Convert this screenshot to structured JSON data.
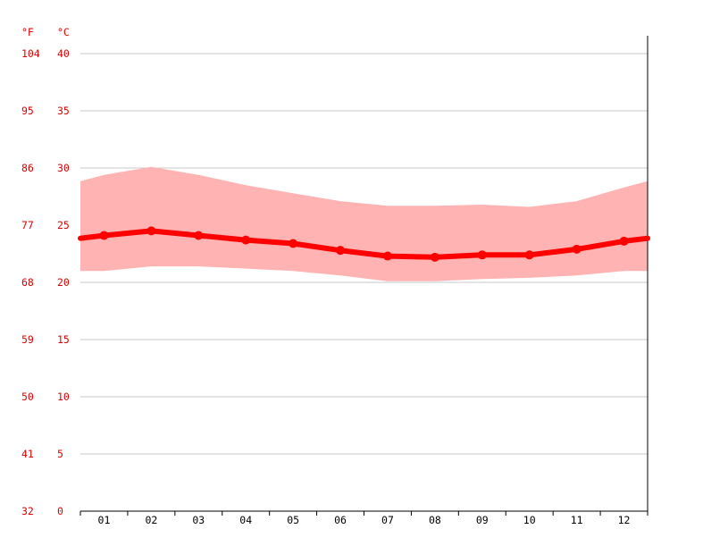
{
  "chart_data": {
    "type": "line",
    "title": "",
    "categories": [
      "01",
      "02",
      "03",
      "04",
      "05",
      "06",
      "07",
      "08",
      "09",
      "10",
      "11",
      "12"
    ],
    "series": [
      {
        "values": [
          24.1,
          24.5,
          24.1,
          23.7,
          23.4,
          22.8,
          22.3,
          22.2,
          22.4,
          22.4,
          22.9,
          23.6
        ]
      }
    ],
    "range": {
      "max": [
        29.4,
        30.1,
        29.4,
        28.5,
        27.8,
        27.1,
        26.7,
        26.7,
        26.8,
        26.6,
        27.1,
        28.3
      ],
      "min": [
        21.0,
        21.4,
        21.4,
        21.2,
        21.0,
        20.6,
        20.1,
        20.1,
        20.3,
        20.4,
        20.6,
        21.0
      ]
    },
    "y_celsius": {
      "unit": "°C",
      "ticks": [
        "0",
        "5",
        "10",
        "15",
        "20",
        "25",
        "30",
        "35",
        "40"
      ],
      "ylim": [
        0,
        40
      ]
    },
    "y_fahrenheit": {
      "unit": "°F",
      "ticks": [
        "32",
        "41",
        "50",
        "59",
        "68",
        "77",
        "86",
        "95",
        "104"
      ]
    },
    "grid": true,
    "colors": {
      "line": "#ff0000",
      "band": "#ffb3b3",
      "labels": "#e00000",
      "grid": "#c8c8c8"
    }
  }
}
